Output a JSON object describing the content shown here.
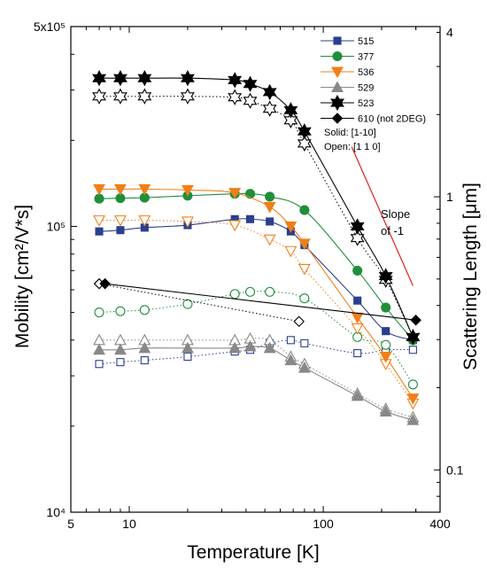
{
  "chart_data": {
    "type": "line",
    "xlabel": "Temperature [K]",
    "ylabel_left": "Mobility [cm²/V*s]",
    "ylabel_right": "Scattering Length [μm]",
    "x_scale": "log",
    "y_scale": "log",
    "xlim": [
      5,
      400
    ],
    "ylim": [
      10000,
      500000
    ],
    "y2lim": [
      0.07,
      4.2
    ],
    "grid": false,
    "legend_position": "top-right",
    "x_ticks": [
      {
        "value": 5,
        "label": "5"
      },
      {
        "value": 10,
        "label": "10"
      },
      {
        "value": 100,
        "label": "100"
      },
      {
        "value": 400,
        "label": "400"
      }
    ],
    "y_ticks": [
      {
        "value": 10000,
        "label": "10⁴"
      },
      {
        "value": 100000,
        "label": "10⁵"
      },
      {
        "value": 500000,
        "label": "5x10⁵"
      }
    ],
    "y2_ticks": [
      {
        "value": 0.1,
        "label": "0.1"
      },
      {
        "value": 1,
        "label": "1"
      },
      {
        "value": 4,
        "label": "4"
      }
    ],
    "legend_notes": [
      "Solid: [1-10]",
      "Open: [1 1 0]"
    ],
    "annotation": {
      "line1": "Slope",
      "line2": "of -1"
    },
    "slope_line": {
      "x": [
        140,
        290
      ],
      "y": [
        190000,
        62000
      ],
      "color": "#e02020"
    },
    "series": [
      {
        "name": "515",
        "color": "#2b3f8f",
        "marker": "square",
        "solid": {
          "x": [
            7,
            9,
            12,
            20,
            35,
            42,
            53,
            68,
            80,
            150,
            210,
            290
          ],
          "y": [
            96000,
            97000,
            99000,
            101000,
            106000,
            106000,
            104000,
            96000,
            86000,
            55000,
            43000,
            40000
          ]
        },
        "open": {
          "x": [
            7,
            9,
            12,
            20,
            35,
            42,
            53,
            68,
            80,
            150,
            210,
            290
          ],
          "y": [
            33000,
            33500,
            34000,
            35000,
            36500,
            37000,
            39000,
            40000,
            39000,
            36000,
            37000,
            37000
          ]
        }
      },
      {
        "name": "377",
        "color": "#1f8f3a",
        "marker": "circle",
        "solid": {
          "x": [
            7,
            9,
            12,
            20,
            35,
            42,
            53,
            80,
            150,
            210,
            290
          ],
          "y": [
            125000,
            125500,
            126000,
            128000,
            130000,
            130000,
            127000,
            114000,
            70000,
            52000,
            40000
          ]
        },
        "open": {
          "x": [
            7,
            9,
            12,
            20,
            35,
            42,
            53,
            80,
            150,
            210,
            290
          ],
          "y": [
            50000,
            50500,
            51000,
            53500,
            58000,
            59000,
            59000,
            56000,
            41000,
            38500,
            28000
          ]
        }
      },
      {
        "name": "536",
        "color": "#f07f1a",
        "marker": "triangle-down",
        "solid": {
          "x": [
            7,
            9,
            12,
            20,
            35,
            53,
            68,
            80,
            150,
            210,
            290
          ],
          "y": [
            135000,
            135000,
            135000,
            134000,
            131000,
            117000,
            100000,
            87000,
            48000,
            35000,
            25000
          ]
        },
        "open": {
          "x": [
            7,
            9,
            12,
            20,
            35,
            53,
            68,
            80,
            150,
            210,
            290
          ],
          "y": [
            105000,
            105000,
            105000,
            104000,
            101000,
            90000,
            82000,
            71000,
            44000,
            33000,
            24000
          ]
        }
      },
      {
        "name": "529",
        "color": "#888888",
        "marker": "triangle-up",
        "solid": {
          "x": [
            7,
            9,
            12,
            20,
            35,
            42,
            53,
            68,
            80,
            150,
            210,
            290
          ],
          "y": [
            37000,
            37000,
            37500,
            37500,
            37500,
            38000,
            37500,
            34000,
            32000,
            25500,
            22500,
            21000
          ]
        },
        "open": {
          "x": [
            7,
            9,
            12,
            20,
            35,
            42,
            53,
            68,
            80,
            150,
            210,
            290
          ],
          "y": [
            40000,
            40000,
            40000,
            40000,
            40000,
            40500,
            40000,
            35000,
            33000,
            26000,
            23000,
            21500
          ]
        }
      },
      {
        "name": "523",
        "color": "#000000",
        "marker": "star",
        "solid": {
          "x": [
            7,
            9,
            12,
            20,
            35,
            42,
            53,
            68,
            80,
            150,
            210,
            290
          ],
          "y": [
            330000,
            330000,
            330000,
            330000,
            325000,
            315000,
            295000,
            255000,
            215000,
            100000,
            67000,
            41000
          ]
        },
        "open": {
          "x": [
            7,
            9,
            12,
            20,
            35,
            42,
            53,
            68,
            80,
            150,
            210,
            290
          ],
          "y": [
            285000,
            285000,
            285000,
            285000,
            283000,
            275000,
            258000,
            235000,
            195000,
            91000,
            65000,
            41000
          ]
        }
      },
      {
        "name": "610 (not 2DEG)",
        "color": "#000000",
        "marker": "diamond",
        "solid": {
          "x": [
            7.5,
            300
          ],
          "y": [
            63000,
            47000
          ]
        },
        "open": {
          "x": [
            7,
            75
          ],
          "y": [
            63000,
            46500
          ]
        }
      }
    ]
  }
}
